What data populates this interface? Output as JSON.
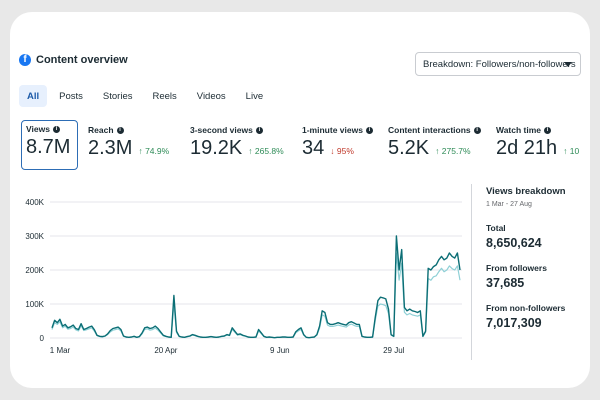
{
  "header": {
    "title": "Content overview",
    "icon": "facebook-icon"
  },
  "breakdown": {
    "label": "Breakdown: Followers/non-followers"
  },
  "tabs": [
    {
      "label": "All",
      "active": true
    },
    {
      "label": "Posts"
    },
    {
      "label": "Stories"
    },
    {
      "label": "Reels"
    },
    {
      "label": "Videos"
    },
    {
      "label": "Live"
    }
  ],
  "metrics": [
    {
      "label": "Views",
      "value": "8.7M",
      "change": "",
      "direction": "",
      "selected": true
    },
    {
      "label": "Reach",
      "value": "2.3M",
      "change": "↑ 74.9%",
      "direction": "up"
    },
    {
      "label": "3-second views",
      "value": "19.2K",
      "change": "↑ 265.8%",
      "direction": "up"
    },
    {
      "label": "1-minute views",
      "value": "34",
      "change": "↓ 95%",
      "direction": "down"
    },
    {
      "label": "Content interactions",
      "value": "5.2K",
      "change": "↑ 275.7%",
      "direction": "up"
    },
    {
      "label": "Watch time",
      "value": "2d 21h",
      "change": "↑ 10",
      "direction": "up"
    }
  ],
  "breakdown_panel": {
    "title": "Views breakdown",
    "range": "1 Mar - 27 Aug",
    "total_label": "Total",
    "total_value": "8,650,624",
    "followers_label": "From followers",
    "followers_value": "37,685",
    "nonfollowers_label": "From non-followers",
    "nonfollowers_value": "7,017,309"
  },
  "colors": {
    "accent": "#1877f2",
    "line_dark": "#0b6e75",
    "line_light": "#8fd0d6",
    "up": "#2e8b57",
    "down": "#c0392b"
  },
  "chart_data": {
    "type": "line",
    "x_ticks": [
      "1 Mar",
      "20 Apr",
      "9 Jun",
      "29 Jul"
    ],
    "y_ticks": [
      "0",
      "100K",
      "200K",
      "300K",
      "400K"
    ],
    "ylim": [
      0,
      400000
    ],
    "grid": true,
    "series": [
      {
        "values": [
          30000,
          52000,
          45000,
          55000,
          35000,
          40000,
          30000,
          33000,
          38000,
          28000,
          25000,
          42000,
          25000,
          28000,
          32000,
          35000,
          24000,
          8000,
          5000,
          4000,
          6000,
          12000,
          22000,
          28000,
          30000,
          32000,
          25000,
          6000,
          3000,
          2000,
          3000,
          5000,
          2000,
          4000,
          15000,
          30000,
          32000,
          28000,
          30000,
          35000,
          28000,
          18000,
          8000,
          5000,
          3000,
          2000,
          125000,
          20000,
          5000,
          3000,
          2000,
          4000,
          6000,
          10000,
          8000,
          5000,
          3000,
          2000,
          2000,
          3000,
          4000,
          3000,
          2000,
          3000,
          5000,
          6000,
          10000,
          8000,
          30000,
          20000,
          10000,
          12000,
          8000,
          6000,
          3000,
          2000,
          2000,
          3000,
          25000,
          15000,
          5000,
          2000,
          3000,
          2000,
          1000,
          2000,
          2000,
          3000,
          3000,
          2000,
          2000,
          3000,
          18000,
          25000,
          30000,
          10000,
          2000,
          1000,
          2000,
          3000,
          10000,
          35000,
          80000,
          75000,
          45000,
          40000,
          40000,
          42000,
          45000,
          42000,
          40000,
          38000,
          45000,
          48000,
          44000,
          40000,
          40000,
          5000,
          3000,
          2000,
          2000,
          3000,
          60000,
          110000,
          120000,
          118000,
          115000,
          85000,
          10000,
          5000,
          300000,
          200000,
          260000,
          90000,
          80000,
          85000,
          80000,
          78000,
          75000,
          80000,
          5000,
          20000,
          205000,
          200000,
          210000,
          215000,
          230000,
          240000,
          230000,
          235000,
          250000,
          240000,
          235000,
          250000,
          200000
        ],
        "color": "#0b6e75"
      },
      {
        "values": [
          25000,
          45000,
          40000,
          48000,
          30000,
          35000,
          26000,
          28000,
          32000,
          24000,
          21000,
          36000,
          22000,
          24000,
          27000,
          30000,
          20000,
          7000,
          4000,
          3000,
          5000,
          10000,
          18000,
          23000,
          25000,
          27000,
          21000,
          5000,
          2500,
          1700,
          2500,
          4000,
          1700,
          3400,
          12500,
          25000,
          27000,
          23000,
          25000,
          29000,
          23000,
          15000,
          6500,
          4000,
          2500,
          1700,
          100000,
          16000,
          4000,
          2500,
          1700,
          3400,
          5000,
          8500,
          6800,
          4200,
          2500,
          1700,
          1700,
          2500,
          3400,
          2500,
          1700,
          2500,
          4200,
          5000,
          8500,
          6800,
          25000,
          17000,
          8500,
          10000,
          6800,
          5000,
          2500,
          1700,
          1700,
          2500,
          21000,
          12700,
          4200,
          1700,
          2500,
          1700,
          850,
          1700,
          1700,
          2500,
          2500,
          1700,
          1700,
          2500,
          15000,
          21000,
          25000,
          8500,
          1700,
          850,
          1700,
          2500,
          8500,
          29000,
          68000,
          64000,
          38000,
          34000,
          34000,
          36000,
          38000,
          36000,
          34000,
          32000,
          38000,
          41000,
          37000,
          34000,
          34000,
          4200,
          2500,
          1700,
          1700,
          2500,
          51000,
          94000,
          100000,
          98000,
          95000,
          72000,
          8500,
          4200,
          250000,
          170000,
          220000,
          76000,
          68000,
          72000,
          68000,
          66000,
          64000,
          68000,
          4200,
          17000,
          175000,
          170000,
          180000,
          183000,
          195000,
          205000,
          195000,
          200000,
          212000,
          204000,
          200000,
          212000,
          170000
        ],
        "color": "#8fd0d6"
      }
    ]
  }
}
